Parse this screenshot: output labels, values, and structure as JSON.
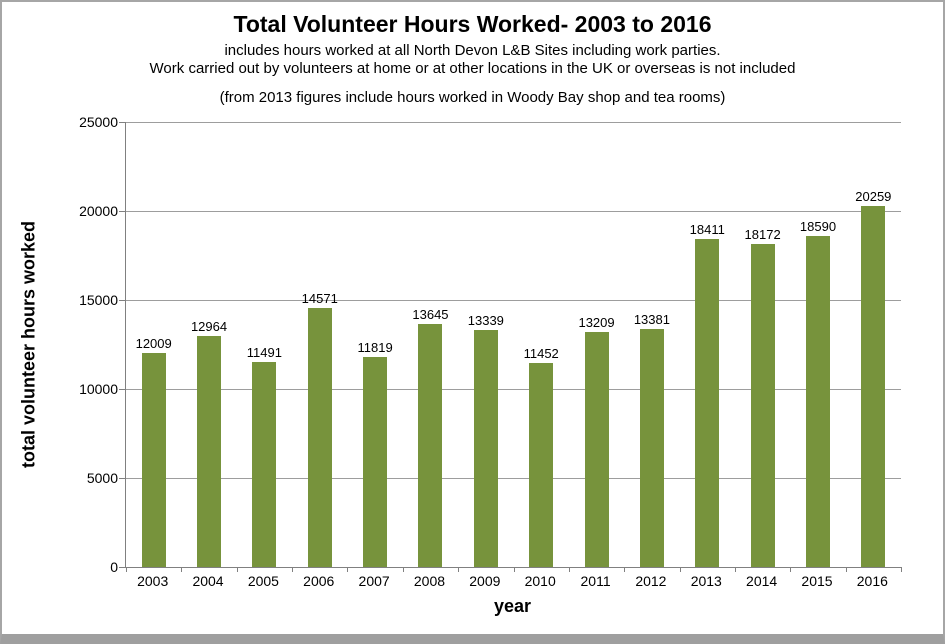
{
  "chart_data": {
    "type": "bar",
    "title": "Total Volunteer Hours Worked- 2003 to 2016",
    "subtitle_lines": [
      "includes hours worked at all North Devon L&B  Sites including work parties.",
      "Work carried out by volunteers at home or at other locations in the UK or overseas is not included",
      "(from 2013 figures include hours worked in Woody Bay shop and tea rooms)"
    ],
    "categories": [
      "2003",
      "2004",
      "2005",
      "2006",
      "2007",
      "2008",
      "2009",
      "2010",
      "2011",
      "2012",
      "2013",
      "2014",
      "2015",
      "2016"
    ],
    "values": [
      12009,
      12964,
      11491,
      14571,
      11819,
      13645,
      13339,
      11452,
      13209,
      13381,
      18411,
      18172,
      18590,
      20259
    ],
    "xlabel": "year",
    "ylabel": "total volunteer hours worked",
    "ylim": [
      0,
      25000
    ],
    "ytick_step": 5000,
    "yticks": [
      "0",
      "5000",
      "10000",
      "15000",
      "20000",
      "25000"
    ],
    "grid": true,
    "legend_position": "none",
    "data_labels": true,
    "colors": {
      "bar": "#77933C",
      "gridline": "#9d9d9d",
      "axis": "#808080",
      "border": "#9f9f9f",
      "text": "#000000"
    }
  }
}
